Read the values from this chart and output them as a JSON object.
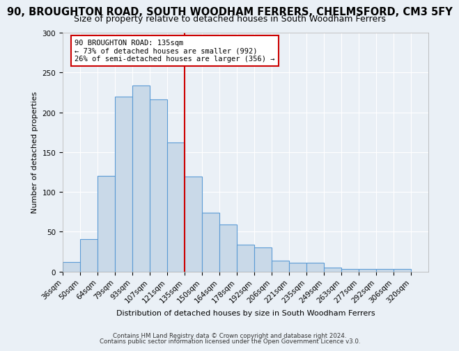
{
  "title": "90, BROUGHTON ROAD, SOUTH WOODHAM FERRERS, CHELMSFORD, CM3 5FY",
  "subtitle": "Size of property relative to detached houses in South Woodham Ferrers",
  "xlabel": "Distribution of detached houses by size in South Woodham Ferrers",
  "ylabel": "Number of detached properties",
  "categories": [
    "36sqm",
    "50sqm",
    "64sqm",
    "79sqm",
    "93sqm",
    "107sqm",
    "121sqm",
    "135sqm",
    "150sqm",
    "164sqm",
    "178sqm",
    "192sqm",
    "206sqm",
    "221sqm",
    "235sqm",
    "249sqm",
    "263sqm",
    "277sqm",
    "292sqm",
    "306sqm",
    "320sqm"
  ],
  "values": [
    12,
    41,
    120,
    220,
    234,
    216,
    162,
    119,
    74,
    59,
    34,
    30,
    14,
    11,
    11,
    5,
    3,
    3,
    3,
    3
  ],
  "bar_color": "#c9d9e8",
  "bar_edge_color": "#5b9bd5",
  "vline_x_idx": 7,
  "annotation_title": "90 BROUGHTON ROAD: 135sqm",
  "annotation_line1": "← 73% of detached houses are smaller (992)",
  "annotation_line2": "26% of semi-detached houses are larger (356) →",
  "annotation_box_color": "#ffffff",
  "annotation_box_edge": "#cc0000",
  "vline_color": "#cc0000",
  "footnote1": "Contains HM Land Registry data © Crown copyright and database right 2024.",
  "footnote2": "Contains public sector information licensed under the Open Government Licence v3.0.",
  "ylim": [
    0,
    300
  ],
  "yticks": [
    0,
    50,
    100,
    150,
    200,
    250,
    300
  ],
  "bg_color": "#eaf0f6",
  "grid_color": "#ffffff",
  "title_fontsize": 10.5,
  "subtitle_fontsize": 9,
  "axis_label_fontsize": 8,
  "tick_fontsize": 7.5,
  "footnote_fontsize": 6.2
}
